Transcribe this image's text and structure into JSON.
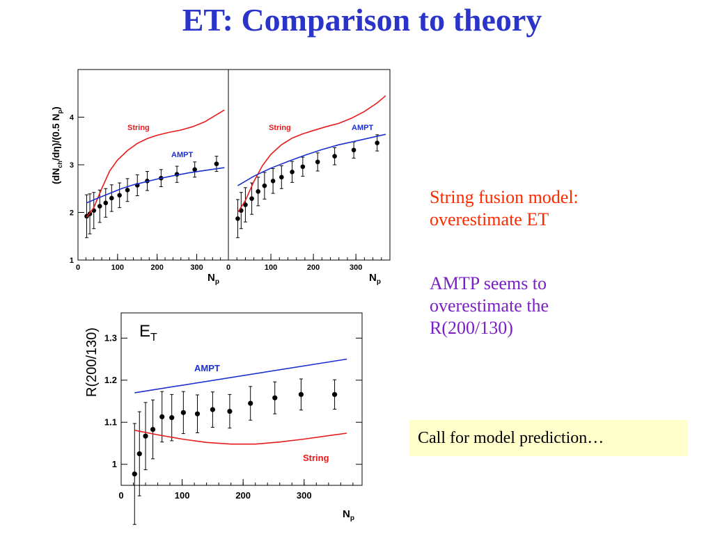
{
  "slide": {
    "title": "ET: Comparison to theory",
    "note1": {
      "lines": [
        "String fusion model:",
        "overestimate ET"
      ],
      "color": "#ff2a00"
    },
    "note2": {
      "lines": [
        "AMTP seems to",
        "overestimate the",
        "R(200/130)"
      ],
      "color": "#7a1fc7"
    },
    "callout": "Call for model prediction…"
  },
  "chart_data": [
    {
      "type": "scatter",
      "panel": "top-left",
      "ylabel": "(dN_ch/dη)/(0.5 N_p)",
      "xlabel": "N_p",
      "xlim": [
        0,
        380
      ],
      "ylim": [
        1,
        5
      ],
      "xticks": [
        0,
        100,
        200,
        300
      ],
      "yticks": [
        1,
        2,
        3,
        4
      ],
      "series": [
        {
          "name": "data",
          "x": [
            22,
            30,
            40,
            55,
            70,
            85,
            105,
            125,
            150,
            175,
            210,
            250,
            295,
            350
          ],
          "y": [
            1.92,
            1.97,
            2.04,
            2.13,
            2.2,
            2.3,
            2.36,
            2.47,
            2.57,
            2.66,
            2.72,
            2.8,
            2.9,
            3.02
          ],
          "err": [
            0.45,
            0.42,
            0.38,
            0.34,
            0.3,
            0.28,
            0.26,
            0.24,
            0.22,
            0.2,
            0.18,
            0.17,
            0.16,
            0.16
          ]
        },
        {
          "name": "String",
          "x": [
            22,
            40,
            60,
            80,
            100,
            125,
            150,
            175,
            200,
            230,
            260,
            290,
            320,
            350,
            370
          ],
          "y": [
            1.9,
            2.1,
            2.5,
            2.87,
            3.1,
            3.3,
            3.45,
            3.55,
            3.62,
            3.68,
            3.73,
            3.8,
            3.9,
            4.05,
            4.15
          ]
        },
        {
          "name": "AMPT",
          "x": [
            22,
            50,
            80,
            110,
            140,
            170,
            200,
            240,
            280,
            320,
            370
          ],
          "y": [
            2.2,
            2.3,
            2.4,
            2.5,
            2.58,
            2.64,
            2.7,
            2.77,
            2.83,
            2.88,
            2.94
          ]
        }
      ],
      "annotations": [
        "String",
        "AMPT"
      ]
    },
    {
      "type": "scatter",
      "panel": "top-right",
      "xlabel": "N_p",
      "xlim": [
        0,
        380
      ],
      "ylim": [
        1,
        5
      ],
      "xticks": [
        0,
        100,
        200,
        300
      ],
      "series": [
        {
          "name": "data",
          "x": [
            22,
            30,
            40,
            55,
            70,
            85,
            105,
            125,
            150,
            175,
            210,
            250,
            295,
            350
          ],
          "y": [
            1.87,
            2.04,
            2.16,
            2.29,
            2.44,
            2.56,
            2.66,
            2.74,
            2.85,
            2.96,
            3.06,
            3.18,
            3.31,
            3.46
          ],
          "err": [
            0.4,
            0.38,
            0.36,
            0.33,
            0.3,
            0.28,
            0.26,
            0.24,
            0.22,
            0.2,
            0.19,
            0.18,
            0.17,
            0.17
          ]
        },
        {
          "name": "String",
          "x": [
            22,
            40,
            60,
            80,
            100,
            125,
            150,
            175,
            200,
            230,
            260,
            290,
            320,
            350,
            370
          ],
          "y": [
            2.0,
            2.25,
            2.65,
            2.98,
            3.22,
            3.42,
            3.56,
            3.65,
            3.72,
            3.8,
            3.87,
            3.98,
            4.12,
            4.3,
            4.45
          ]
        },
        {
          "name": "AMPT",
          "x": [
            22,
            60,
            100,
            140,
            180,
            220,
            260,
            300,
            340,
            370
          ],
          "y": [
            2.56,
            2.76,
            2.93,
            3.07,
            3.2,
            3.32,
            3.42,
            3.5,
            3.58,
            3.64
          ]
        }
      ],
      "annotations": [
        "String",
        "AMPT"
      ]
    },
    {
      "type": "scatter",
      "panel": "bottom",
      "title": "E_T",
      "ylabel": "R(200/130)",
      "xlabel": "N_p",
      "xlim": [
        0,
        395
      ],
      "ylim": [
        0.95,
        1.36
      ],
      "xticks": [
        0,
        100,
        200,
        300
      ],
      "yticks": [
        1,
        1.1,
        1.2,
        1.3
      ],
      "series": [
        {
          "name": "data",
          "x": [
            22,
            30,
            40,
            52,
            67,
            83,
            102,
            125,
            150,
            178,
            212,
            252,
            295,
            350
          ],
          "y": [
            0.977,
            1.025,
            1.067,
            1.083,
            1.113,
            1.111,
            1.123,
            1.12,
            1.13,
            1.126,
            1.145,
            1.158,
            1.166,
            1.166
          ],
          "err": [
            0.12,
            0.1,
            0.08,
            0.07,
            0.06,
            0.055,
            0.05,
            0.045,
            0.042,
            0.04,
            0.04,
            0.038,
            0.037,
            0.035
          ]
        },
        {
          "name": "AMPT",
          "x": [
            22,
            370
          ],
          "y": [
            1.17,
            1.25
          ]
        },
        {
          "name": "String",
          "x": [
            22,
            60,
            100,
            140,
            180,
            220,
            260,
            300,
            340,
            370
          ],
          "y": [
            1.081,
            1.07,
            1.06,
            1.052,
            1.048,
            1.048,
            1.053,
            1.06,
            1.068,
            1.074
          ]
        }
      ],
      "annotations": [
        "AMPT",
        "String"
      ]
    }
  ],
  "colors": {
    "title": "#2b34c8",
    "string": "#e8191b",
    "ampt": "#1b2fd0",
    "callout_bg": "#ffffcc"
  }
}
